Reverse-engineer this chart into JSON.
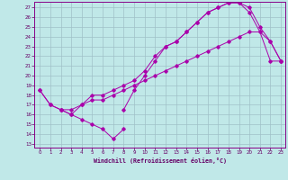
{
  "xlabel": "Windchill (Refroidissement éolien,°C)",
  "bg_color": "#c0e8e8",
  "grid_color": "#a0c0c8",
  "line_color": "#aa00aa",
  "spine_color": "#880088",
  "tick_color": "#660066",
  "xlim_min": -0.5,
  "xlim_max": 23.4,
  "ylim_min": 12.6,
  "ylim_max": 27.6,
  "xticks": [
    0,
    1,
    2,
    3,
    4,
    5,
    6,
    7,
    8,
    9,
    10,
    11,
    12,
    13,
    14,
    15,
    16,
    17,
    18,
    19,
    20,
    21,
    22,
    23
  ],
  "yticks": [
    13,
    14,
    15,
    16,
    17,
    18,
    19,
    20,
    21,
    22,
    23,
    24,
    25,
    26,
    27
  ],
  "curve1_x": [
    0,
    1,
    2,
    3,
    4,
    5,
    6,
    7,
    8,
    9,
    10,
    11,
    12,
    13,
    14,
    15,
    16,
    17,
    18,
    19,
    20,
    21,
    22,
    23
  ],
  "curve1_y": [
    18.5,
    17.0,
    16.5,
    16.0,
    15.5,
    15.0,
    14.5,
    13.5,
    14.5,
    null,
    null,
    null,
    null,
    null,
    null,
    null,
    null,
    null,
    null,
    null,
    null,
    null,
    null,
    null
  ],
  "curve2_x": [
    0,
    1,
    2,
    3,
    4,
    5,
    6,
    7,
    8,
    9,
    10,
    11,
    12,
    13,
    14,
    15,
    16,
    17,
    18,
    19,
    20,
    21,
    22,
    23
  ],
  "curve2_y": [
    18.5,
    17.0,
    16.5,
    16.5,
    17.0,
    17.5,
    17.5,
    18.0,
    18.5,
    19.0,
    19.5,
    20.0,
    20.5,
    21.0,
    21.5,
    22.0,
    22.5,
    23.0,
    23.5,
    24.0,
    24.5,
    24.5,
    21.5,
    21.5
  ],
  "curve3_x": [
    8,
    9,
    10,
    11,
    12,
    13,
    14,
    15,
    16,
    17,
    18,
    19,
    20,
    21,
    22,
    23
  ],
  "curve3_y": [
    16.5,
    18.5,
    20.0,
    21.5,
    23.0,
    23.5,
    24.5,
    25.5,
    26.5,
    27.0,
    27.5,
    27.5,
    27.0,
    25.0,
    23.5,
    21.5
  ],
  "curve4_x": [
    2,
    3,
    4,
    5,
    6,
    7,
    8,
    9,
    10,
    11,
    12,
    13,
    14,
    15,
    16,
    17,
    18,
    19,
    20,
    21,
    22,
    23
  ],
  "curve4_y": [
    16.5,
    16.0,
    17.0,
    18.0,
    18.0,
    18.5,
    19.0,
    19.5,
    20.5,
    22.0,
    23.0,
    23.5,
    24.5,
    25.5,
    26.5,
    27.0,
    27.5,
    27.5,
    26.5,
    24.5,
    23.5,
    21.5
  ]
}
